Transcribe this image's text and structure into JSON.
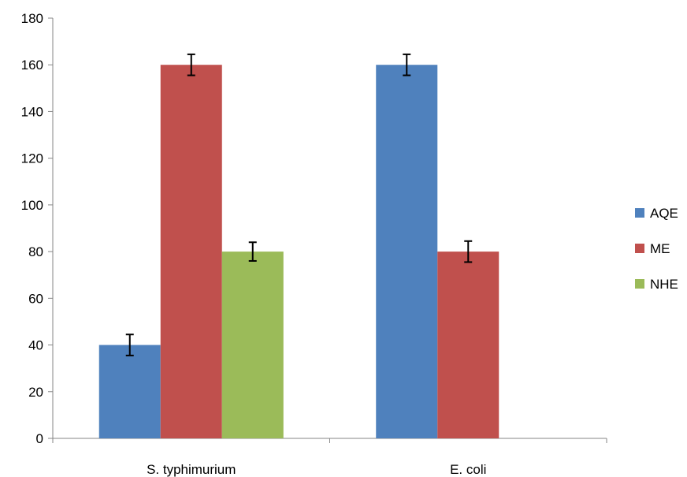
{
  "chart_data": {
    "type": "bar",
    "title": "",
    "xlabel": "",
    "ylabel": "",
    "categories": [
      "S. typhimurium",
      "E. coli"
    ],
    "series": [
      {
        "name": "AQE",
        "color": "#4f81bd",
        "values": [
          40,
          160
        ],
        "errors": [
          4.5,
          4.5
        ]
      },
      {
        "name": "ME",
        "color": "#c0504d",
        "values": [
          160,
          80
        ],
        "errors": [
          4.5,
          4.5
        ]
      },
      {
        "name": "NHE",
        "color": "#9bbb59",
        "values": [
          80,
          null
        ],
        "errors": [
          4,
          null
        ]
      }
    ],
    "ylim": [
      0,
      180
    ],
    "yticks": [
      0,
      20,
      40,
      60,
      80,
      100,
      120,
      140,
      160,
      180
    ],
    "grid": false,
    "legend_position": "right"
  }
}
